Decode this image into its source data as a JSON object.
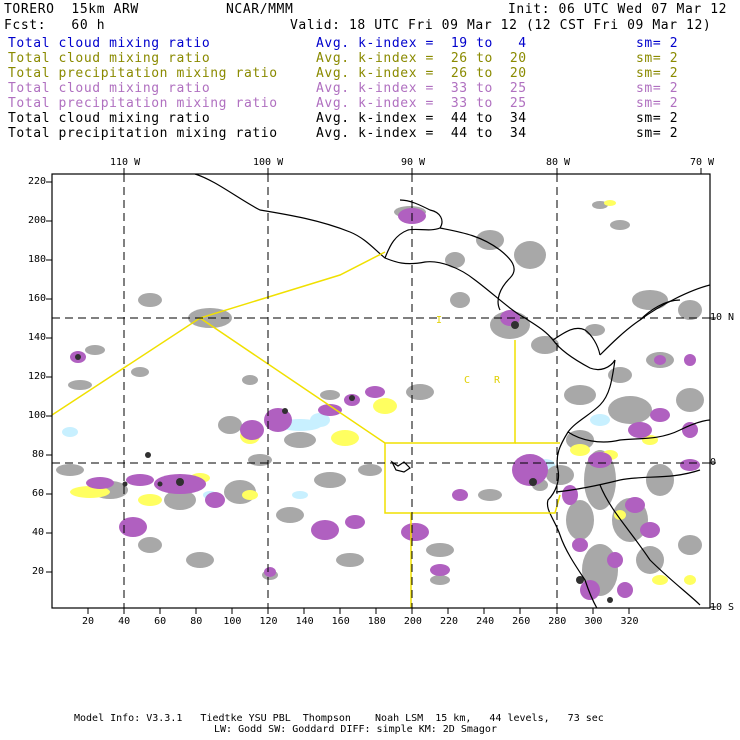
{
  "header": {
    "model": "TORERO  15km ARW",
    "org": "NCAR/MMM",
    "init": "Init: 06 UTC Wed 07 Mar 12",
    "fcst": "Fcst:   60 h",
    "valid": "Valid: 18 UTC Fri 09 Mar 12 (12 CST Fri 09 Mar 12)"
  },
  "legend": [
    {
      "field": "Total cloud mixing ratio",
      "kindex": "Avg. k-index =  19 to   4",
      "sm": "sm= 2",
      "color": "#0000cc"
    },
    {
      "field": "Total cloud mixing ratio",
      "kindex": "Avg. k-index =  26 to  20",
      "sm": "sm= 2",
      "color": "#8a8a00"
    },
    {
      "field": "Total precipitation mixing ratio",
      "kindex": "Avg. k-index =  26 to  20",
      "sm": "sm= 2",
      "color": "#8a8a00"
    },
    {
      "field": "Total cloud mixing ratio",
      "kindex": "Avg. k-index =  33 to  25",
      "sm": "sm= 2",
      "color": "#b070c0"
    },
    {
      "field": "Total precipitation mixing ratio",
      "kindex": "Avg. k-index =  33 to  25",
      "sm": "sm= 2",
      "color": "#b070c0"
    },
    {
      "field": "Total cloud mixing ratio",
      "kindex": "Avg. k-index =  44 to  34",
      "sm": "sm= 2",
      "color": "#000000"
    },
    {
      "field": "Total precipitation mixing ratio",
      "kindex": "Avg. k-index =  44 to  34",
      "sm": "sm= 2",
      "color": "#000000"
    }
  ],
  "axes": {
    "top_lon": [
      "110 W",
      "100 W",
      "90 W",
      "80 W",
      "70 W"
    ],
    "right_lat": [
      "10 N",
      "0",
      "10 S"
    ],
    "left_y": [
      "220",
      "200",
      "180",
      "160",
      "140",
      "120",
      "100",
      "80",
      "60",
      "40",
      "20"
    ],
    "bottom_x": [
      "20",
      "40",
      "60",
      "80",
      "100",
      "120",
      "140",
      "160",
      "180",
      "200",
      "220",
      "240",
      "260",
      "280",
      "300",
      "320"
    ]
  },
  "map_labels": {
    "c": "C",
    "r": "R",
    "i": "I"
  },
  "footer": {
    "line1": "Model Info: V3.3.1   Tiedtke YSU PBL  Thompson    Noah LSM  15 km,   44 levels,   73 sec",
    "line2": "LW: Godd SW: Goddard DIFF: simple KM: 2D Smagor"
  },
  "colors": {
    "cloud_gray": "#a8a8a8",
    "precip_magenta": "#b060c0",
    "light_yellow": "#ffff60",
    "light_cyan": "#c8f0ff",
    "dark": "#303030",
    "boundary": "#f0e000"
  }
}
